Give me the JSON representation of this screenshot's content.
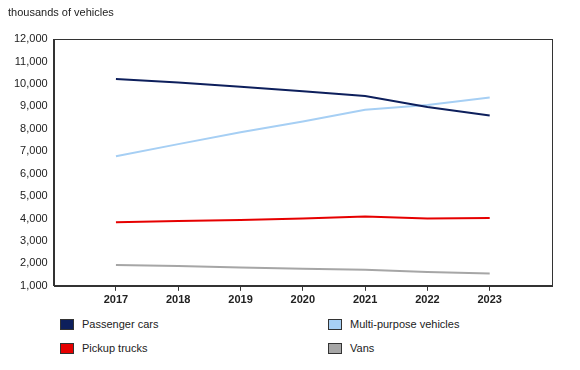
{
  "chart_data": {
    "type": "line",
    "ylabel": "thousands of vehicles",
    "x": [
      2017,
      2018,
      2019,
      2020,
      2021,
      2022,
      2023
    ],
    "xlim": [
      2016,
      2024
    ],
    "xticks": [
      2017,
      2018,
      2019,
      2020,
      2021,
      2022,
      2023
    ],
    "ylim": [
      1000,
      12000
    ],
    "yticks": [
      {
        "value": 1000,
        "label": "1,000"
      },
      {
        "value": 2000,
        "label": "2,000"
      },
      {
        "value": 3000,
        "label": "3,000"
      },
      {
        "value": 4000,
        "label": "4,000"
      },
      {
        "value": 5000,
        "label": "5,000"
      },
      {
        "value": 6000,
        "label": "6,000"
      },
      {
        "value": 7000,
        "label": "7,000"
      },
      {
        "value": 8000,
        "label": "8,000"
      },
      {
        "value": 9000,
        "label": "9,000"
      },
      {
        "value": 10000,
        "label": "10,000"
      },
      {
        "value": 11000,
        "label": "11,000"
      },
      {
        "value": 12000,
        "label": "12,000"
      }
    ],
    "grid": false,
    "legend": "bottom",
    "series": [
      {
        "name": "Passenger cars",
        "color": "#0d1f5c",
        "values": [
          10230,
          10070,
          9880,
          9680,
          9470,
          8980,
          8600
        ]
      },
      {
        "name": "Multi-purpose vehicles",
        "color": "#a6cff4",
        "values": [
          6780,
          7320,
          7850,
          8330,
          8850,
          9060,
          9400
        ]
      },
      {
        "name": "Pickup trucks",
        "color": "#e60000",
        "values": [
          3840,
          3890,
          3940,
          4000,
          4090,
          4000,
          4020
        ]
      },
      {
        "name": "Vans",
        "color": "#a6a6a6",
        "values": [
          1930,
          1880,
          1820,
          1760,
          1720,
          1620,
          1550
        ]
      }
    ]
  }
}
